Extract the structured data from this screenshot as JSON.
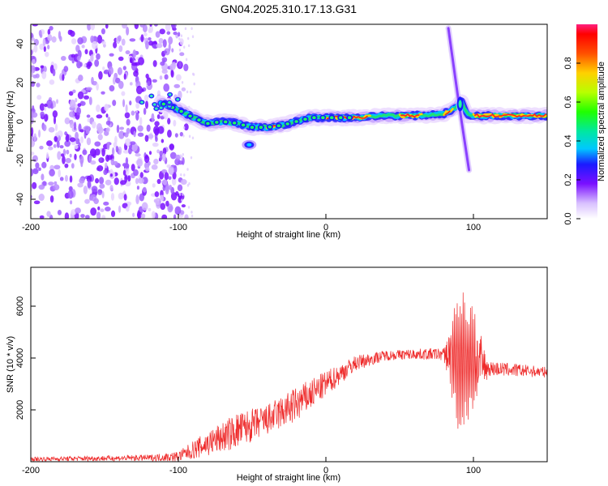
{
  "title": "GN04.2025.310.17.13.G31",
  "colors": {
    "snr_line": "#ee2a2a",
    "axis": "#000000"
  },
  "chart_data": [
    {
      "type": "heatmap",
      "name": "spectrogram",
      "xlabel": "Height of straight line (km)",
      "ylabel": "Frequency (Hz)",
      "xlim": [
        -200,
        150
      ],
      "ylim": [
        -50,
        50
      ],
      "xticks": [
        -200,
        -100,
        0,
        100
      ],
      "yticks": [
        40,
        20,
        0,
        -20,
        -40
      ],
      "colorbar": {
        "label": "Normalized spectral amplitude",
        "range": [
          0,
          1
        ],
        "ticks": [
          "0.0",
          "0.2",
          "0.4",
          "0.6",
          "0.8"
        ],
        "tick_values": [
          0.0,
          0.2,
          0.4,
          0.6,
          0.8
        ]
      },
      "ridge": {
        "x": [
          -110,
          -100,
          -90,
          -80,
          -70,
          -60,
          -50,
          -40,
          -30,
          -20,
          -10,
          0,
          20,
          40,
          60,
          80,
          88,
          92,
          96,
          100,
          150
        ],
        "y": [
          9,
          6,
          2,
          -1,
          0,
          -1,
          -3,
          -3,
          -2,
          0,
          2,
          2,
          2,
          3,
          3,
          4,
          7,
          10,
          3,
          3,
          3
        ]
      },
      "noise_region_x": [
        -200,
        -100
      ],
      "secondary_blob": {
        "x": -52,
        "y": -12
      },
      "spike": {
        "x": [
          83,
          90,
          97
        ],
        "y": [
          48,
          10,
          -25
        ]
      }
    },
    {
      "type": "line",
      "name": "snr",
      "xlabel": "Height of straight line (km)",
      "ylabel": "SNR (10 * v/v)",
      "xlim": [
        -200,
        150
      ],
      "ylim": [
        0,
        7500
      ],
      "xticks": [
        -200,
        -100,
        0,
        100
      ],
      "yticks": [
        2000,
        4000,
        6000
      ],
      "envelope": {
        "x": [
          -200,
          -120,
          -100,
          -80,
          -60,
          -40,
          -20,
          0,
          20,
          40,
          60,
          80,
          90,
          100,
          110,
          150
        ],
        "baseline": [
          100,
          150,
          200,
          700,
          1200,
          1600,
          2200,
          3000,
          3800,
          4100,
          4150,
          4150,
          4000,
          3900,
          3600,
          3450
        ],
        "amplitude": [
          80,
          120,
          200,
          500,
          700,
          600,
          700,
          500,
          300,
          200,
          200,
          250,
          2500,
          2000,
          300,
          200
        ]
      }
    }
  ]
}
